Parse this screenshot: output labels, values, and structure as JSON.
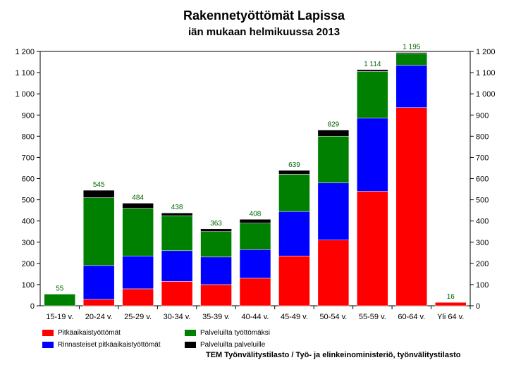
{
  "chart_data": {
    "type": "bar",
    "stacked": true,
    "title": "Rakennetyöttömät Lapissa",
    "subtitle": "iän mukaan helmikuussa 2013",
    "categories": [
      "15-19 v.",
      "20-24 v.",
      "25-29 v.",
      "30-34 v.",
      "35-39 v.",
      "40-44 v.",
      "45-49 v.",
      "50-54 v.",
      "55-59 v.",
      "60-64 v.",
      "Yli 64 v."
    ],
    "series": [
      {
        "name": "Pitkäaikaistyöttömät",
        "color": "#ff0000",
        "values": [
          0,
          30,
          80,
          115,
          100,
          130,
          235,
          310,
          540,
          935,
          16
        ]
      },
      {
        "name": "Rinnasteiset pitkäaikaistyöttömät",
        "color": "#0000ff",
        "values": [
          0,
          160,
          155,
          145,
          130,
          135,
          210,
          270,
          345,
          200,
          0
        ]
      },
      {
        "name": "Palveluilta työttömäksi",
        "color": "#008000",
        "values": [
          55,
          320,
          225,
          165,
          120,
          125,
          175,
          220,
          220,
          55,
          0
        ]
      },
      {
        "name": "Palveluilta palveluille",
        "color": "#000000",
        "values": [
          0,
          35,
          24,
          13,
          13,
          18,
          19,
          29,
          9,
          5,
          0
        ]
      }
    ],
    "totals": [
      "55",
      "545",
      "484",
      "438",
      "363",
      "408",
      "639",
      "829",
      "1 114",
      "1 195",
      "16"
    ],
    "ylim": [
      0,
      1200
    ],
    "yticks": [
      "0",
      "100",
      "200",
      "300",
      "400",
      "500",
      "600",
      "700",
      "800",
      "900",
      "1 000",
      "1 100",
      "1 200"
    ],
    "grid": false,
    "legend_position": "bottom-left"
  },
  "source": "TEM Työnvälitystilasto / Työ- ja elinkeinoministeriö, työnvälitystilasto"
}
